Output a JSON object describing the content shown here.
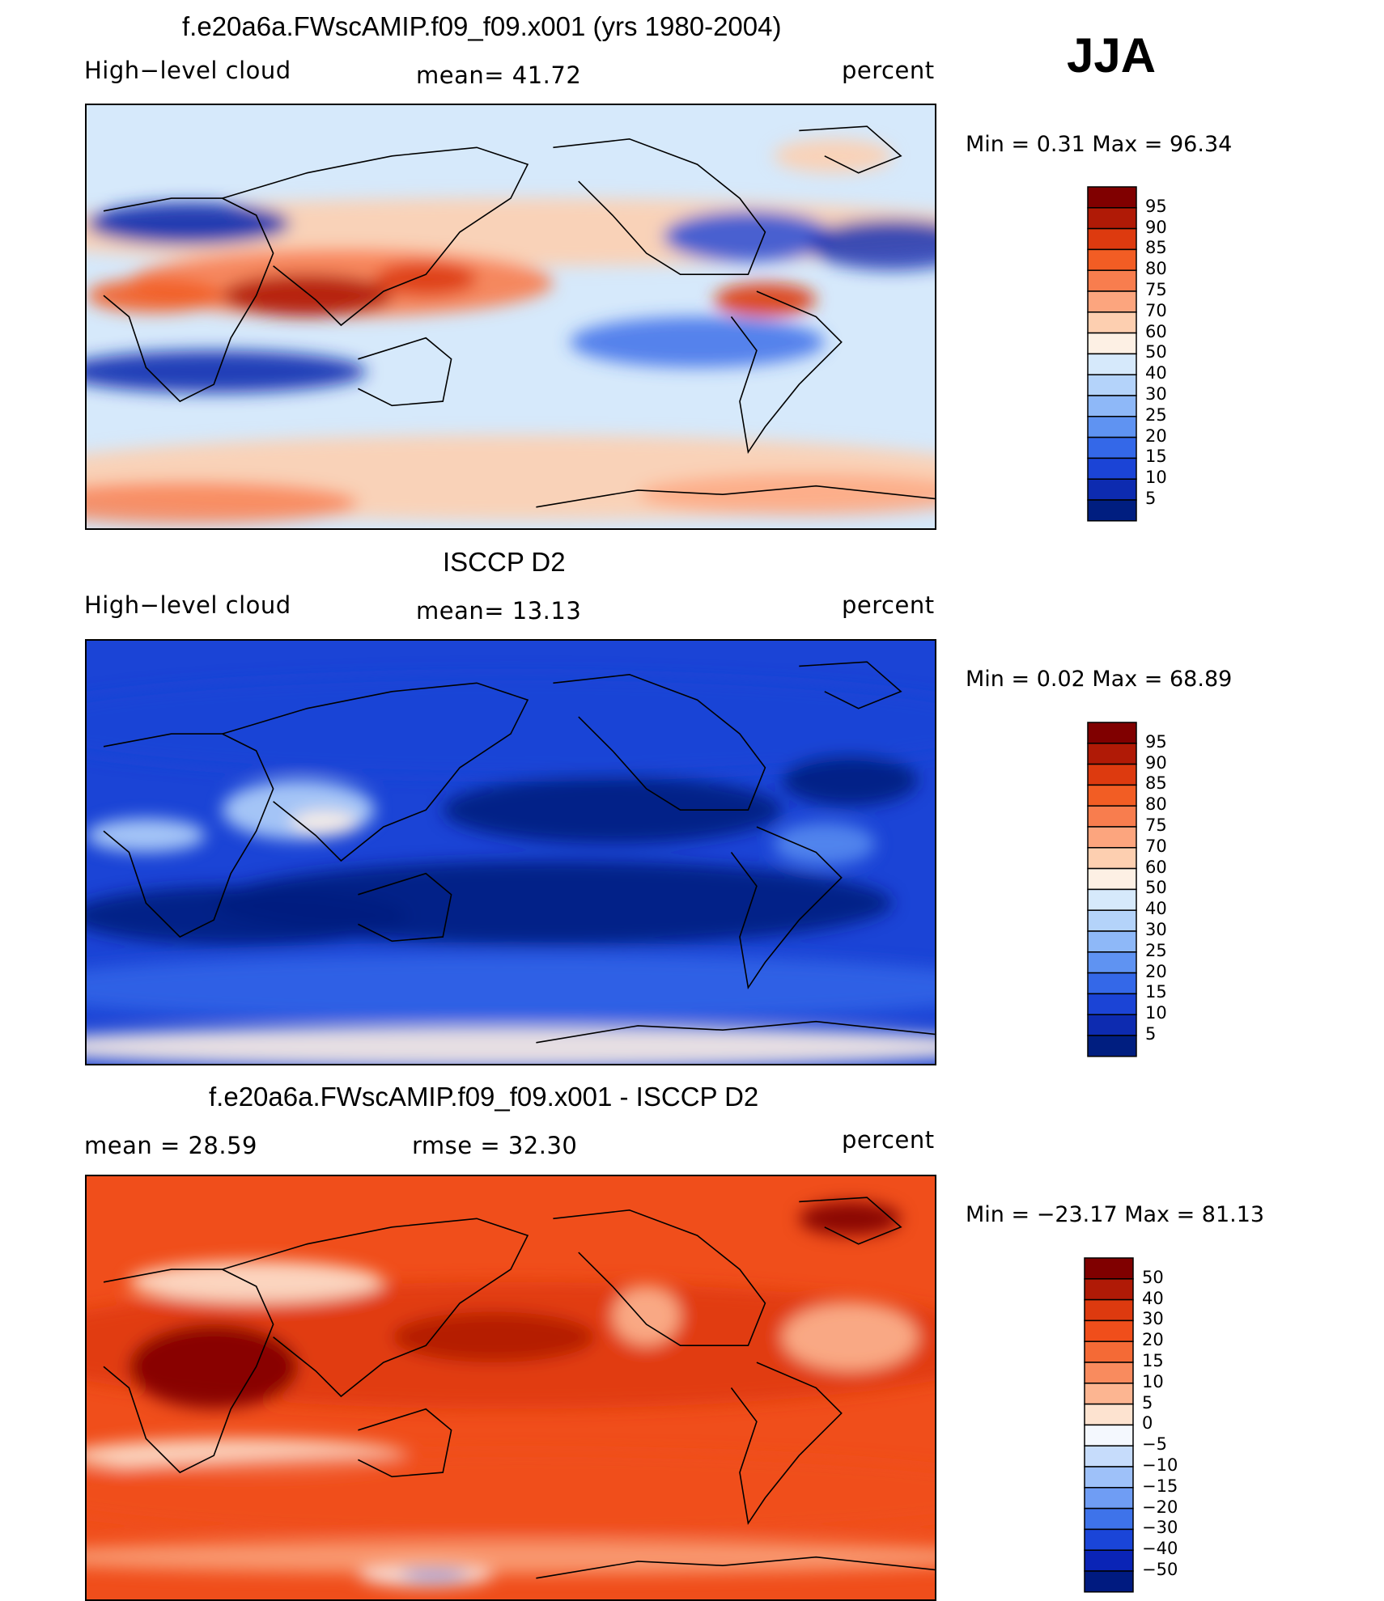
{
  "season": "JJA",
  "panels": [
    {
      "id": "model",
      "title": "f.e20a6a.FWscAMIP.f09_f09.x001 (yrs 1980-2004)",
      "left_label": "High−level cloud",
      "center_label": "mean=   41.72",
      "units": "percent",
      "minmax": "Min =    0.31  Max =   96.34",
      "colorbar": {
        "levels": [
          "95",
          "90",
          "85",
          "80",
          "75",
          "70",
          "60",
          "50",
          "40",
          "30",
          "25",
          "20",
          "15",
          "10",
          "5"
        ],
        "colors": [
          "#800000",
          "#b01a06",
          "#dd3a0f",
          "#f25d24",
          "#f87d4e",
          "#fca57e",
          "#fdcfb0",
          "#fdf0e4",
          "#d6e9fb",
          "#b4d3fa",
          "#8eb8f8",
          "#5f93f2",
          "#3468e8",
          "#1b44d6",
          "#0d2bb0",
          "#001e80"
        ]
      },
      "field": "model"
    },
    {
      "id": "obs",
      "title": "ISCCP D2",
      "left_label": "High−level cloud",
      "center_label": "mean=   13.13",
      "units": "percent",
      "minmax": "Min =    0.02  Max =   68.89",
      "colorbar": {
        "levels": [
          "95",
          "90",
          "85",
          "80",
          "75",
          "70",
          "60",
          "50",
          "40",
          "30",
          "25",
          "20",
          "15",
          "10",
          "5"
        ],
        "colors": [
          "#800000",
          "#b01a06",
          "#dd3a0f",
          "#f25d24",
          "#f87d4e",
          "#fca57e",
          "#fdcfb0",
          "#fdf0e4",
          "#d6e9fb",
          "#b4d3fa",
          "#8eb8f8",
          "#5f93f2",
          "#3468e8",
          "#1b44d6",
          "#0d2bb0",
          "#001e80"
        ]
      },
      "field": "obs"
    },
    {
      "id": "diff",
      "title": "f.e20a6a.FWscAMIP.f09_f09.x001 - ISCCP D2",
      "left_label": "mean =    28.59",
      "center_label": "rmse =    32.30",
      "units": "percent",
      "minmax": "Min = −23.17  Max =   81.13",
      "colorbar": {
        "levels": [
          "50",
          "40",
          "30",
          "20",
          "15",
          "10",
          "5",
          "0",
          "−5",
          "−10",
          "−15",
          "−20",
          "−30",
          "−40",
          "−50"
        ],
        "colors": [
          "#800000",
          "#b01a06",
          "#dd3a0f",
          "#f04e1b",
          "#f46a36",
          "#f98b5e",
          "#fcb591",
          "#fde3d0",
          "#f4f8fe",
          "#c6dcfb",
          "#9ec1f9",
          "#6f9df4",
          "#3e73ea",
          "#1a45d8",
          "#0a24b6",
          "#001a80"
        ]
      },
      "field": "diff"
    }
  ]
}
